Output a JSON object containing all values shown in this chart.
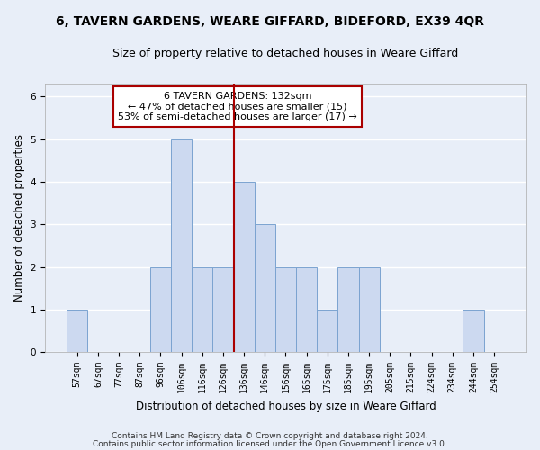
{
  "title": "6, TAVERN GARDENS, WEARE GIFFARD, BIDEFORD, EX39 4QR",
  "subtitle": "Size of property relative to detached houses in Weare Giffard",
  "xlabel": "Distribution of detached houses by size in Weare Giffard",
  "ylabel": "Number of detached properties",
  "footnote1": "Contains HM Land Registry data © Crown copyright and database right 2024.",
  "footnote2": "Contains public sector information licensed under the Open Government Licence v3.0.",
  "bar_labels": [
    "57sqm",
    "67sqm",
    "77sqm",
    "87sqm",
    "96sqm",
    "106sqm",
    "116sqm",
    "126sqm",
    "136sqm",
    "146sqm",
    "156sqm",
    "165sqm",
    "175sqm",
    "185sqm",
    "195sqm",
    "205sqm",
    "215sqm",
    "224sqm",
    "234sqm",
    "244sqm",
    "254sqm"
  ],
  "bar_values": [
    1,
    0,
    0,
    0,
    2,
    5,
    2,
    2,
    4,
    3,
    2,
    2,
    1,
    2,
    2,
    0,
    0,
    0,
    0,
    1,
    0
  ],
  "bar_color": "#ccd9f0",
  "bar_edge_color": "#7ba3d0",
  "vline_color": "#aa0000",
  "vline_bar_index": 8,
  "annotation_text": "6 TAVERN GARDENS: 132sqm\n← 47% of detached houses are smaller (15)\n53% of semi-detached houses are larger (17) →",
  "annotation_box_color": "white",
  "annotation_box_edge": "#aa0000",
  "ylim": [
    0,
    6.3
  ],
  "background_color": "#e8eef8",
  "grid_color": "white",
  "title_fontsize": 10,
  "subtitle_fontsize": 9,
  "label_fontsize": 8.5,
  "tick_fontsize": 7,
  "footnote_fontsize": 6.5
}
